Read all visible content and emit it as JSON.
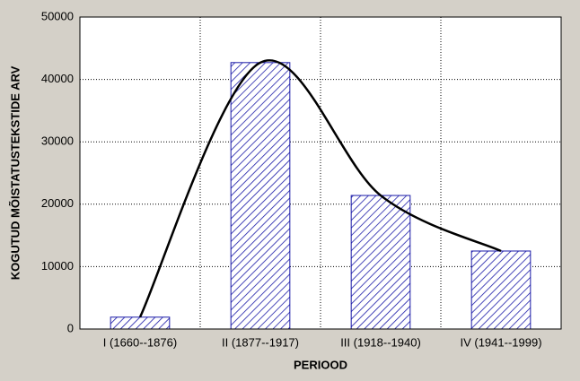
{
  "chart_data": {
    "type": "bar",
    "x_label": "PERIOOD",
    "y_label": "KOGUTUD MÕISTATUSTEKSTIDE ARV",
    "categories": [
      "I (1660--1876)",
      "II (1877--1917)",
      "III (1918--1940)",
      "IV (1941--1999)"
    ],
    "values": [
      1900,
      42700,
      21400,
      12500
    ],
    "color": "#1a1aa8",
    "curve_color": "#000000",
    "ylim": [
      0,
      50000
    ],
    "yticks": [
      0,
      10000,
      20000,
      30000,
      40000,
      50000
    ],
    "grid": true
  }
}
